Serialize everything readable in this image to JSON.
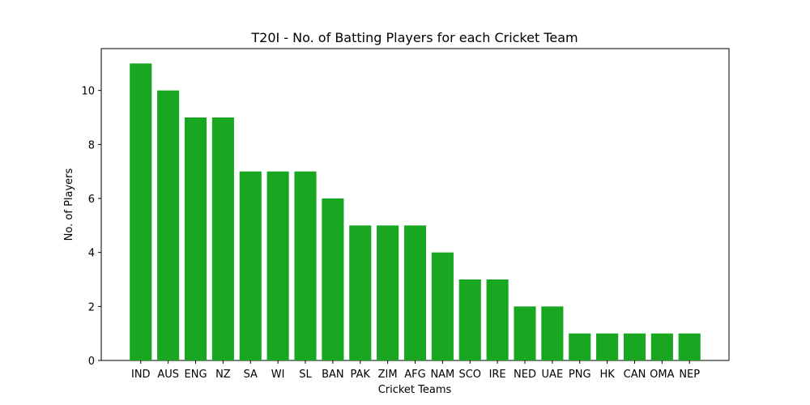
{
  "chart_data": {
    "type": "bar",
    "title": "T20I - No. of Batting Players for each Cricket Team",
    "xlabel": "Cricket Teams",
    "ylabel": "No. of Players",
    "categories": [
      "IND",
      "AUS",
      "ENG",
      "NZ",
      "SA",
      "WI",
      "SL",
      "BAN",
      "PAK",
      "ZIM",
      "AFG",
      "NAM",
      "SCO",
      "IRE",
      "NED",
      "UAE",
      "PNG",
      "HK",
      "CAN",
      "OMA",
      "NEP"
    ],
    "values": [
      11,
      10,
      9,
      9,
      7,
      7,
      7,
      6,
      5,
      5,
      5,
      4,
      3,
      3,
      2,
      2,
      1,
      1,
      1,
      1,
      1
    ],
    "ylim": [
      0,
      11.55
    ],
    "yticks": [
      0,
      2,
      4,
      6,
      8,
      10
    ],
    "bar_color": "#19a621",
    "grid": false,
    "legend": "none"
  }
}
